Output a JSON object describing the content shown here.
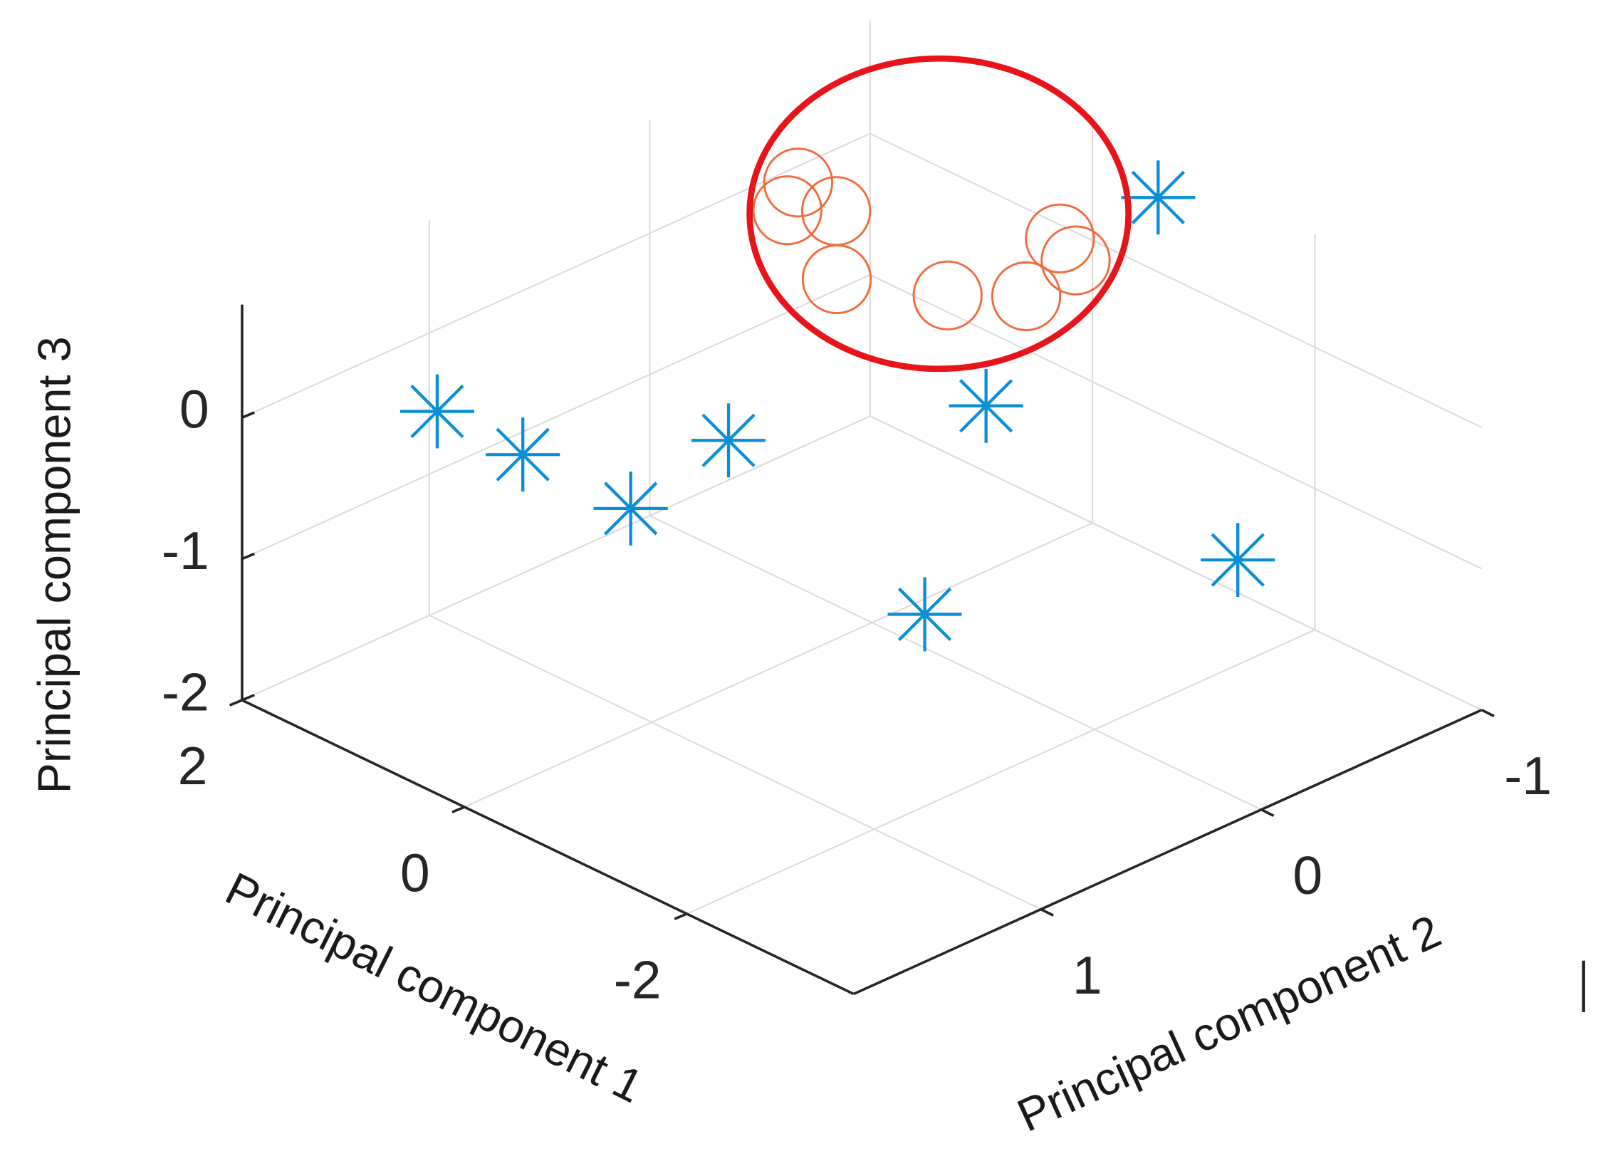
{
  "chart_data": {
    "type": "scatter",
    "projection": "3d",
    "xlabel": "Principal component 1",
    "ylabel": "Principal component 2",
    "zlabel": "Principal component 3",
    "xlim": [
      -3.5,
      2
    ],
    "ylim": [
      -1,
      1.85
    ],
    "zlim": [
      -2,
      0.8
    ],
    "xticks": [
      2,
      0,
      -2
    ],
    "xtick_labels": [
      "2",
      "0",
      "-2"
    ],
    "yticks": [
      1,
      0,
      -1
    ],
    "ytick_labels": [
      "1",
      "0",
      "-1"
    ],
    "zticks": [
      0,
      -1,
      -2
    ],
    "ztick_labels": [
      "0",
      "-1",
      "-2"
    ],
    "grid": true,
    "series": [
      {
        "marker": "asterisk",
        "color": "#0a8fd6",
        "points": [
          [
            1.89,
            1.02,
            -0.5
          ],
          [
            1.1,
            1.03,
            -0.5
          ],
          [
            0.11,
            1.04,
            -0.5
          ],
          [
            0.34,
            0.48,
            -0.5
          ],
          [
            -0.45,
            -0.29,
            -0.5
          ],
          [
            -0.69,
            -0.95,
            0.6
          ],
          [
            -0.83,
            0.18,
            -1.5
          ],
          [
            -2.08,
            -0.61,
            -1.2
          ]
        ]
      },
      {
        "marker": "circle",
        "color": "#f26a3c",
        "points": [
          [
            1.16,
            -0.25,
            0.5
          ],
          [
            0.94,
            -0.09,
            0.5
          ],
          [
            0.72,
            -0.2,
            0.5
          ],
          [
            0.06,
            0.13,
            0.5
          ],
          [
            -0.58,
            -0.05,
            0.5
          ],
          [
            -0.93,
            -0.23,
            0.5
          ],
          [
            -0.52,
            -0.59,
            0.5
          ],
          [
            -0.8,
            -0.52,
            0.5
          ]
        ]
      }
    ],
    "annotations": [
      {
        "shape": "ellipse",
        "color": "#e8141a",
        "encloses": "circle series"
      }
    ]
  }
}
